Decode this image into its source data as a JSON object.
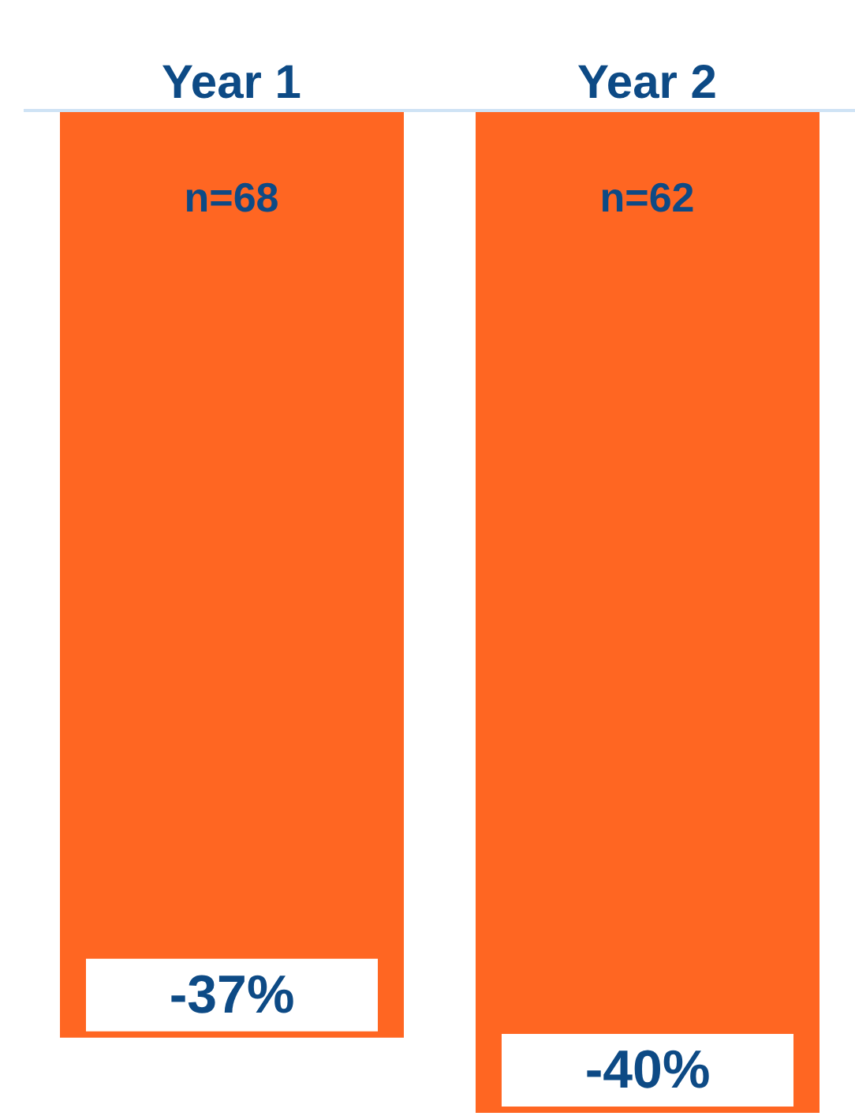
{
  "chart_data": {
    "type": "bar",
    "categories": [
      "Year 1",
      "Year 2"
    ],
    "values": [
      -37,
      -40
    ],
    "color": "#ff6622",
    "value_labels": [
      "-37%",
      "-40%"
    ],
    "ylim": [
      -40,
      0
    ],
    "tick_labels": "x",
    "annotations": [
      "n=68",
      "n=62"
    ]
  }
}
